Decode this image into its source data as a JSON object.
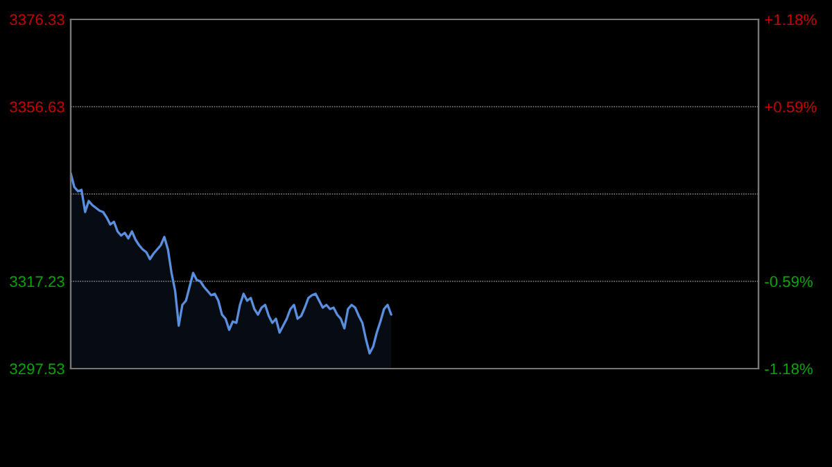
{
  "chart_data": {
    "type": "area",
    "categories": [
      null,
      null,
      null,
      null,
      null,
      null,
      null,
      null,
      null,
      null,
      null,
      null,
      null,
      null,
      null,
      null,
      null,
      null,
      null,
      null,
      null,
      null,
      null,
      null,
      null,
      null,
      null,
      null,
      null,
      null,
      null,
      null,
      null,
      null,
      null,
      null,
      null,
      null,
      null,
      null,
      null,
      null,
      null,
      null,
      null,
      null,
      null,
      null,
      null,
      null,
      null,
      null,
      null,
      null,
      null,
      null,
      null,
      null,
      null,
      null,
      null,
      null,
      null,
      null,
      null,
      null,
      null,
      null,
      null,
      null,
      null,
      null,
      null,
      null,
      null,
      null,
      null,
      null,
      null,
      null,
      null,
      null,
      null,
      null,
      null,
      null,
      null,
      null,
      null,
      null,
      null,
      null,
      null,
      null,
      null,
      null,
      null,
      null,
      null,
      null,
      null,
      null,
      null,
      null,
      null,
      null,
      null,
      null,
      null,
      null,
      null,
      null,
      null,
      null,
      null,
      null,
      null,
      null,
      null,
      null,
      null,
      null,
      null,
      null,
      null,
      null,
      null,
      null,
      null,
      null,
      null,
      null,
      null,
      null,
      null,
      null,
      null,
      null,
      null,
      null,
      null,
      null,
      null,
      null,
      null,
      null,
      null,
      null,
      null,
      null,
      null,
      null,
      null,
      null,
      null,
      null,
      null,
      null,
      null,
      null,
      null,
      null,
      null,
      null,
      null,
      null,
      null,
      null,
      null,
      null,
      null,
      null,
      null,
      null,
      null,
      null,
      null,
      null,
      null,
      null,
      null,
      null,
      null,
      null,
      null,
      null,
      null,
      null,
      null,
      null,
      null,
      null
    ],
    "ylim": [
      3297.53,
      3376.33
    ],
    "yticks": [
      3297.53,
      3317.23,
      {
        "value": 3336.93,
        "label": null
      },
      3356.63,
      3376.33
    ],
    "y2lim": [
      -1.18,
      1.18
    ],
    "y2ticks": [
      {
        "value": -1.18,
        "label": "-1.18%"
      },
      {
        "value": -0.59,
        "label": "-0.59%"
      },
      {
        "value": 0,
        "label": null
      },
      {
        "value": 0.59,
        "label": "+0.59%"
      },
      {
        "value": 1.18,
        "label": "+1.18%"
      }
    ],
    "grid": "y",
    "tick_labels": "y",
    "legend": false,
    "series": [
      {
        "color": "#5a8fe0",
        "values": [
          3341.62,
          3338.49,
          3337.56,
          3337.87,
          3332.86,
          3335.37,
          3334.43,
          3333.8,
          3333.18,
          3332.86,
          3331.61,
          3330.05,
          3330.68,
          3328.49,
          3327.55,
          3328.17,
          3326.92,
          3328.49,
          3326.61,
          3325.36,
          3324.42,
          3323.8,
          3322.23,
          3323.48,
          3324.42,
          3325.36,
          3327.24,
          3324.42,
          3319.11,
          3315.04,
          3307.22,
          3311.91,
          3312.85,
          3315.98,
          3319.11,
          3317.54,
          3317.23,
          3315.98,
          3315.04,
          3314.1,
          3314.42,
          3312.85,
          3309.72,
          3308.79,
          3306.29,
          3308.16,
          3307.85,
          3311.91,
          3314.42,
          3312.85,
          3313.48,
          3310.98,
          3309.72,
          3311.29,
          3311.91,
          3309.41,
          3307.85,
          3308.79,
          3305.66,
          3307.22,
          3308.79,
          3310.98,
          3311.91,
          3308.79,
          3309.41,
          3311.29,
          3313.48,
          3314.1,
          3314.42,
          3312.85,
          3311.29,
          3311.91,
          3310.98,
          3311.29,
          3309.72,
          3308.79,
          3306.6,
          3310.98,
          3311.91,
          3311.29,
          3309.41,
          3307.85,
          3304.1,
          3300.97,
          3302.53,
          3305.66,
          3308.16,
          3310.98,
          3311.91,
          3309.72,
          null,
          null,
          null,
          null,
          null,
          null,
          null,
          null,
          null,
          null,
          null,
          null,
          null,
          null,
          null,
          null,
          null,
          null,
          null,
          null,
          null,
          null,
          null,
          null,
          null,
          null,
          null,
          null,
          null,
          null,
          null,
          null,
          null,
          null,
          null,
          null,
          null,
          null,
          null,
          null,
          null,
          null,
          null,
          null,
          null,
          null,
          null,
          null,
          null,
          null,
          null,
          null,
          null,
          null,
          null,
          null,
          null,
          null,
          null,
          null,
          null,
          null,
          null,
          null,
          null,
          null,
          null,
          null,
          null,
          null,
          null,
          null,
          null,
          null,
          null,
          null,
          null,
          null,
          null,
          null,
          null,
          null,
          null,
          null,
          null,
          null,
          null,
          null,
          null,
          null,
          null,
          null,
          null,
          null,
          null,
          null,
          null,
          null,
          null,
          null,
          null,
          null
        ]
      }
    ]
  }
}
